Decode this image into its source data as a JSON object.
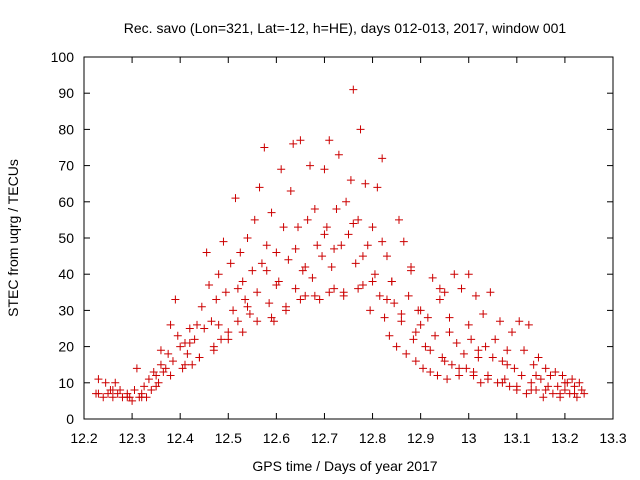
{
  "chart_data": {
    "type": "scatter",
    "title": "Rec. savo (Lon=321, Lat=-12, h=HE), days 012-013, 2017, window 001",
    "xlabel": "GPS time / Days of year 2017",
    "ylabel": "STEC from uqrg / TECUs",
    "xlim": [
      12.2,
      13.3
    ],
    "ylim": [
      0,
      100
    ],
    "x_ticks": [
      "12.2",
      "12.3",
      "12.4",
      "12.5",
      "12.6",
      "12.7",
      "12.8",
      "12.9",
      "13",
      "13.1",
      "13.2",
      "13.3"
    ],
    "y_ticks": [
      "0",
      "10",
      "20",
      "30",
      "40",
      "50",
      "60",
      "70",
      "80",
      "90",
      "100"
    ],
    "grid": false,
    "legend": "none",
    "marker": "+",
    "color": "#cc0000",
    "series": [
      {
        "points": [
          [
            12.225,
            7
          ],
          [
            12.23,
            11
          ],
          [
            12.24,
            6
          ],
          [
            12.245,
            10
          ],
          [
            12.25,
            7
          ],
          [
            12.255,
            8
          ],
          [
            12.26,
            6
          ],
          [
            12.265,
            10
          ],
          [
            12.27,
            7
          ],
          [
            12.275,
            8
          ],
          [
            12.28,
            6
          ],
          [
            12.29,
            7
          ],
          [
            12.295,
            6
          ],
          [
            12.3,
            5
          ],
          [
            12.305,
            8
          ],
          [
            12.31,
            14
          ],
          [
            12.315,
            6
          ],
          [
            12.32,
            7
          ],
          [
            12.325,
            9
          ],
          [
            12.33,
            6
          ],
          [
            12.335,
            11
          ],
          [
            12.34,
            8
          ],
          [
            12.345,
            13
          ],
          [
            12.35,
            12
          ],
          [
            12.355,
            10
          ],
          [
            12.36,
            19
          ],
          [
            12.365,
            13
          ],
          [
            12.37,
            14
          ],
          [
            12.375,
            18
          ],
          [
            12.38,
            26
          ],
          [
            12.385,
            16
          ],
          [
            12.39,
            33
          ],
          [
            12.395,
            23
          ],
          [
            12.4,
            20
          ],
          [
            12.405,
            14
          ],
          [
            12.41,
            21
          ],
          [
            12.415,
            18
          ],
          [
            12.42,
            25
          ],
          [
            12.425,
            15
          ],
          [
            12.43,
            22
          ],
          [
            12.435,
            26
          ],
          [
            12.44,
            17
          ],
          [
            12.445,
            31
          ],
          [
            12.45,
            25
          ],
          [
            12.455,
            46
          ],
          [
            12.46,
            37
          ],
          [
            12.465,
            27
          ],
          [
            12.47,
            20
          ],
          [
            12.475,
            33
          ],
          [
            12.48,
            40
          ],
          [
            12.485,
            22
          ],
          [
            12.49,
            49
          ],
          [
            12.495,
            35
          ],
          [
            12.5,
            24
          ],
          [
            12.505,
            43
          ],
          [
            12.51,
            30
          ],
          [
            12.515,
            61
          ],
          [
            12.52,
            27
          ],
          [
            12.525,
            46
          ],
          [
            12.53,
            38
          ],
          [
            12.535,
            33
          ],
          [
            12.54,
            50
          ],
          [
            12.545,
            29
          ],
          [
            12.55,
            41
          ],
          [
            12.555,
            55
          ],
          [
            12.56,
            35
          ],
          [
            12.565,
            64
          ],
          [
            12.57,
            43
          ],
          [
            12.575,
            75
          ],
          [
            12.58,
            48
          ],
          [
            12.585,
            32
          ],
          [
            12.59,
            57
          ],
          [
            12.595,
            27
          ],
          [
            12.6,
            46
          ],
          [
            12.605,
            38
          ],
          [
            12.61,
            69
          ],
          [
            12.615,
            53
          ],
          [
            12.62,
            30
          ],
          [
            12.625,
            44
          ],
          [
            12.63,
            63
          ],
          [
            12.635,
            76
          ],
          [
            12.64,
            36
          ],
          [
            12.645,
            53
          ],
          [
            12.65,
            77
          ],
          [
            12.655,
            41
          ],
          [
            12.66,
            34
          ],
          [
            12.665,
            55
          ],
          [
            12.67,
            70
          ],
          [
            12.675,
            39
          ],
          [
            12.68,
            58
          ],
          [
            12.685,
            48
          ],
          [
            12.69,
            33
          ],
          [
            12.695,
            45
          ],
          [
            12.7,
            69
          ],
          [
            12.705,
            53
          ],
          [
            12.71,
            77
          ],
          [
            12.715,
            42
          ],
          [
            12.72,
            36
          ],
          [
            12.725,
            58
          ],
          [
            12.73,
            73
          ],
          [
            12.735,
            48
          ],
          [
            12.74,
            34
          ],
          [
            12.745,
            60
          ],
          [
            12.75,
            51
          ],
          [
            12.755,
            66
          ],
          [
            12.76,
            91
          ],
          [
            12.765,
            43
          ],
          [
            12.77,
            55
          ],
          [
            12.775,
            80
          ],
          [
            12.78,
            37
          ],
          [
            12.785,
            65
          ],
          [
            12.79,
            48
          ],
          [
            12.795,
            30
          ],
          [
            12.8,
            53
          ],
          [
            12.805,
            40
          ],
          [
            12.81,
            64
          ],
          [
            12.815,
            34
          ],
          [
            12.82,
            72
          ],
          [
            12.825,
            28
          ],
          [
            12.83,
            45
          ],
          [
            12.835,
            23
          ],
          [
            12.84,
            38
          ],
          [
            12.845,
            32
          ],
          [
            12.85,
            20
          ],
          [
            12.855,
            55
          ],
          [
            12.86,
            27
          ],
          [
            12.865,
            49
          ],
          [
            12.87,
            18
          ],
          [
            12.875,
            34
          ],
          [
            12.88,
            42
          ],
          [
            12.885,
            22
          ],
          [
            12.89,
            16
          ],
          [
            12.895,
            30
          ],
          [
            12.9,
            26
          ],
          [
            12.905,
            14
          ],
          [
            12.91,
            20
          ],
          [
            12.915,
            28
          ],
          [
            12.92,
            13
          ],
          [
            12.925,
            39
          ],
          [
            12.93,
            23
          ],
          [
            12.935,
            12
          ],
          [
            12.94,
            36
          ],
          [
            12.945,
            17
          ],
          [
            12.95,
            35
          ],
          [
            12.955,
            11
          ],
          [
            12.96,
            28
          ],
          [
            12.965,
            15
          ],
          [
            12.97,
            40
          ],
          [
            12.975,
            21
          ],
          [
            12.98,
            12
          ],
          [
            12.985,
            36
          ],
          [
            12.99,
            18
          ],
          [
            12.995,
            14
          ],
          [
            13.0,
            40
          ],
          [
            13.005,
            22
          ],
          [
            13.01,
            13
          ],
          [
            13.015,
            34
          ],
          [
            13.02,
            17
          ],
          [
            13.025,
            10
          ],
          [
            13.03,
            29
          ],
          [
            13.035,
            20
          ],
          [
            13.04,
            12
          ],
          [
            13.045,
            35
          ],
          [
            13.05,
            17
          ],
          [
            13.055,
            22
          ],
          [
            13.06,
            10
          ],
          [
            13.065,
            27
          ],
          [
            13.07,
            16
          ],
          [
            13.075,
            11
          ],
          [
            13.08,
            19
          ],
          [
            13.085,
            9
          ],
          [
            13.09,
            24
          ],
          [
            13.095,
            14
          ],
          [
            13.1,
            8
          ],
          [
            13.105,
            27
          ],
          [
            13.11,
            12
          ],
          [
            13.115,
            19
          ],
          [
            13.12,
            7
          ],
          [
            13.125,
            26
          ],
          [
            13.13,
            10
          ],
          [
            13.135,
            15
          ],
          [
            13.14,
            8
          ],
          [
            13.145,
            17
          ],
          [
            13.15,
            11
          ],
          [
            13.155,
            6
          ],
          [
            13.16,
            14
          ],
          [
            13.165,
            9
          ],
          [
            13.17,
            12
          ],
          [
            13.175,
            7
          ],
          [
            13.18,
            13
          ],
          [
            13.185,
            9
          ],
          [
            13.19,
            6
          ],
          [
            13.195,
            12
          ],
          [
            13.2,
            8
          ],
          [
            13.205,
            10
          ],
          [
            13.21,
            7
          ],
          [
            13.215,
            11
          ],
          [
            13.22,
            9
          ],
          [
            13.225,
            6
          ],
          [
            13.23,
            10
          ],
          [
            13.235,
            8
          ],
          [
            13.24,
            7
          ],
          [
            12.23,
            7
          ],
          [
            12.26,
            8
          ],
          [
            12.29,
            6
          ],
          [
            12.32,
            6
          ],
          [
            12.35,
            9
          ],
          [
            12.38,
            12
          ],
          [
            12.41,
            15
          ],
          [
            12.44,
            17
          ],
          [
            12.47,
            19
          ],
          [
            12.5,
            22
          ],
          [
            12.53,
            24
          ],
          [
            12.56,
            27
          ],
          [
            12.59,
            28
          ],
          [
            12.62,
            31
          ],
          [
            12.65,
            33
          ],
          [
            12.68,
            34
          ],
          [
            12.71,
            35
          ],
          [
            12.74,
            35
          ],
          [
            12.77,
            36
          ],
          [
            12.8,
            38
          ],
          [
            12.83,
            33
          ],
          [
            12.86,
            29
          ],
          [
            12.89,
            24
          ],
          [
            12.92,
            19
          ],
          [
            12.95,
            16
          ],
          [
            12.98,
            14
          ],
          [
            13.01,
            12
          ],
          [
            13.04,
            11
          ],
          [
            13.07,
            10
          ],
          [
            13.1,
            9
          ],
          [
            13.13,
            8
          ],
          [
            13.16,
            8
          ],
          [
            13.19,
            7
          ],
          [
            13.22,
            7
          ],
          [
            12.36,
            15
          ],
          [
            12.42,
            21
          ],
          [
            12.48,
            26
          ],
          [
            12.54,
            31
          ],
          [
            12.6,
            37
          ],
          [
            12.66,
            42
          ],
          [
            12.72,
            47
          ],
          [
            12.78,
            45
          ],
          [
            12.84,
            38
          ],
          [
            12.9,
            30
          ],
          [
            12.96,
            24
          ],
          [
            13.02,
            19
          ],
          [
            13.08,
            15
          ],
          [
            13.14,
            12
          ],
          [
            13.2,
            10
          ],
          [
            12.52,
            36
          ],
          [
            12.58,
            41
          ],
          [
            12.64,
            47
          ],
          [
            12.7,
            51
          ],
          [
            12.76,
            54
          ],
          [
            12.82,
            49
          ],
          [
            12.88,
            41
          ],
          [
            12.94,
            33
          ],
          [
            13.0,
            26
          ]
        ]
      }
    ]
  }
}
